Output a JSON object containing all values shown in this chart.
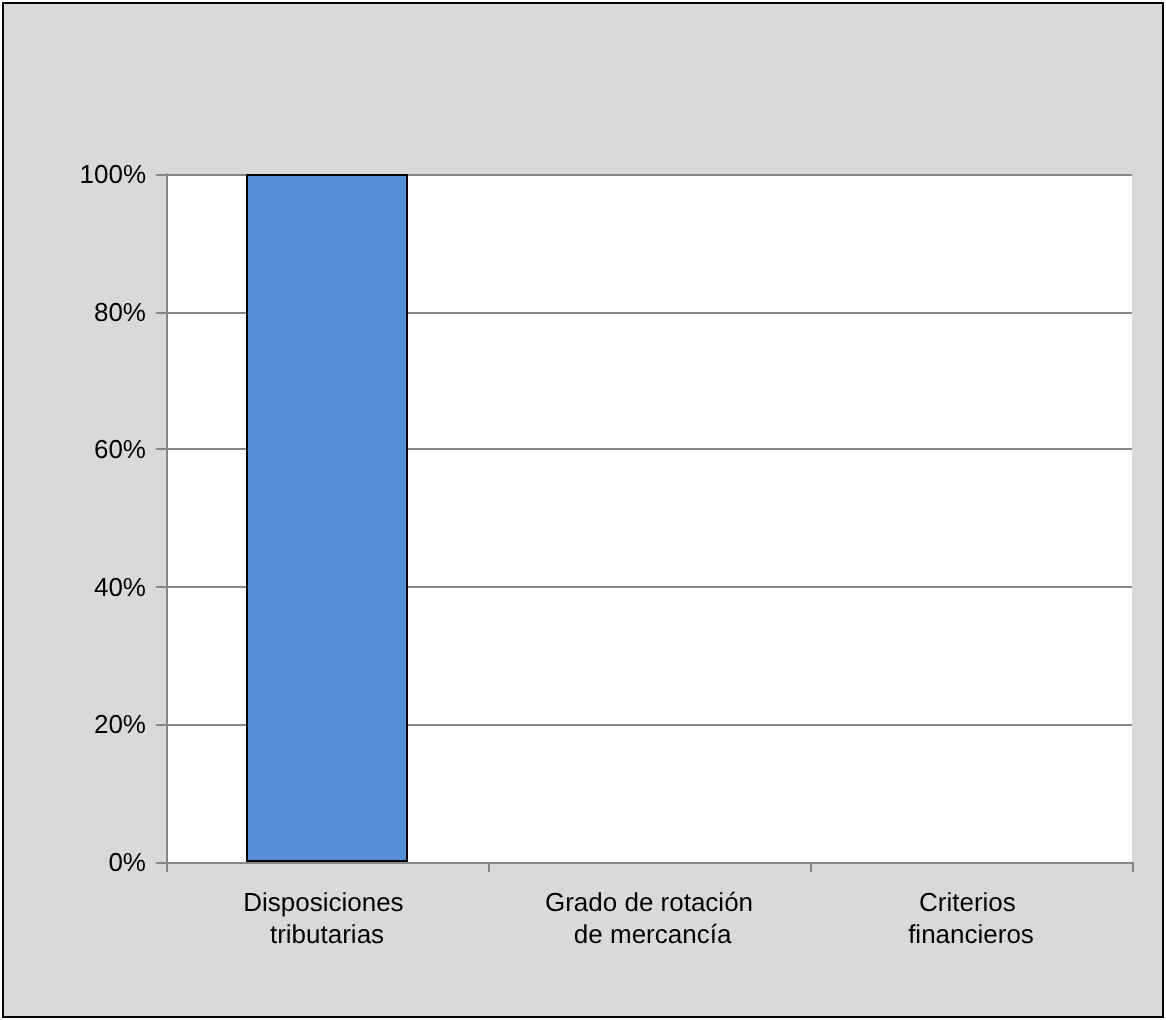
{
  "chart_data": {
    "type": "bar",
    "categories": [
      "Disposiciones tributarias",
      "Grado de rotación de mercancía",
      "Criterios financieros"
    ],
    "values": [
      100,
      0,
      0
    ],
    "color": "#558ed5",
    "ylim": [
      0,
      100
    ],
    "yticks": [
      {
        "value": 0,
        "label": "0%"
      },
      {
        "value": 20,
        "label": "20%"
      },
      {
        "value": 40,
        "label": "40%"
      },
      {
        "value": 60,
        "label": "60%"
      },
      {
        "value": 80,
        "label": "80%"
      },
      {
        "value": 100,
        "label": "100%"
      }
    ],
    "grid": "y"
  }
}
